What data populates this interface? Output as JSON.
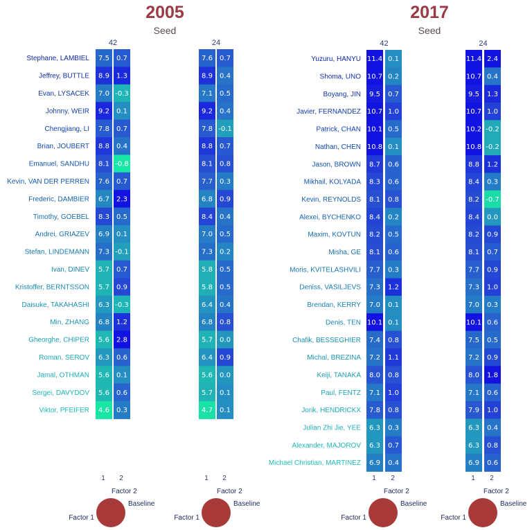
{
  "chart_data": [
    {
      "type": "heatmap",
      "title": "2005",
      "subtitle": "Seed",
      "factor_labels": [
        "1",
        "2"
      ],
      "legend": {
        "factor1": "Factor 1",
        "factor2": "Factor 2",
        "baseline": "Baseline"
      },
      "skaters": [
        "Stephane, LAMBIEL",
        "Jeffrey, BUTTLE",
        "Evan, LYSACEK",
        "Johnny, WEIR",
        "Chengjiang, LI",
        "Brian, JOUBERT",
        "Emanuel, SANDHU",
        "Kevin, VAN DER PERREN",
        "Frederic, DAMBIER",
        "Timothy, GOEBEL",
        "Andrei, GRIAZEV",
        "Stefan, LINDEMANN",
        "Ivan, DINEV",
        "Kristoffer, BERNTSSON",
        "Daisuke, TAKAHASHI",
        "Min, ZHANG",
        "Gheorghe, CHIPER",
        "Roman, SEROV",
        "Jamal, OTHMAN",
        "Sergei, DAVYDOV",
        "Viktor, PFEIFER"
      ],
      "seeds": [
        {
          "seed": "42",
          "factor1": [
            "7.5",
            "8.9",
            "7.0",
            "9.2",
            "7.8",
            "8.8",
            "8.1",
            "7.6",
            "6.7",
            "8.3",
            "6.9",
            "7.3",
            "5.7",
            "5.7",
            "6.3",
            "6.8",
            "5.6",
            "6.3",
            "5.6",
            "5.6",
            "4.6"
          ],
          "factor2": [
            "0.7",
            "1.3",
            "-0.3",
            "0.1",
            "0.7",
            "0.4",
            "-0.8",
            "0.7",
            "2.3",
            "0.5",
            "0.1",
            "-0.1",
            "0.7",
            "0.9",
            "-0.3",
            "1.2",
            "2.8",
            "0.6",
            "0.1",
            "0.6",
            "0.3"
          ]
        },
        {
          "seed": "24",
          "factor1": [
            "7.6",
            "8.9",
            "7.1",
            "9.2",
            "7.8",
            "8.8",
            "8.1",
            "7.7",
            "6.8",
            "8.4",
            "7.0",
            "7.3",
            "5.8",
            "5.8",
            "6.4",
            "6.8",
            "5.7",
            "6.4",
            "5.6",
            "5.7",
            "4.7"
          ],
          "factor2": [
            "0.7",
            "0.4",
            "0.5",
            "0.4",
            "-0.1",
            "0.7",
            "0.8",
            "0.3",
            "0.9",
            "0.4",
            "0.5",
            "0.2",
            "0.5",
            "0.5",
            "0.4",
            "0.8",
            "0.0",
            "0.9",
            "0.0",
            "0.1",
            "0.1"
          ]
        }
      ]
    },
    {
      "type": "heatmap",
      "title": "2017",
      "subtitle": "Seed",
      "factor_labels": [
        "1",
        "2"
      ],
      "legend": {
        "factor1": "Factor 1",
        "factor2": "Factor 2",
        "baseline": "Baseline"
      },
      "skaters": [
        "Yuzuru, HANYU",
        "Shoma, UNO",
        "Boyang, JIN",
        "Javier, FERNANDEZ",
        "Patrick, CHAN",
        "Nathan, CHEN",
        "Jason, BROWN",
        "Mikhail, KOLYADA",
        "Kevin, REYNOLDS",
        "Alexei, BYCHENKO",
        "Maxim, KOVTUN",
        "Misha, GE",
        "Moris, KVITELASHVILI",
        "Deniss, VASILJEVS",
        "Brendan, KERRY",
        "Denis, TEN",
        "Chafik, BESSEGHIER",
        "Michal, BREZINA",
        "Keiji, TANAKA",
        "Paul, FENTZ",
        "Jorik, HENDRICKX",
        "Julian Zhi Jie, YEE",
        "Alexander, MAJOROV",
        "Michael Christian, MARTINEZ"
      ],
      "seeds": [
        {
          "seed": "42",
          "factor1": [
            "11.4",
            "10.7",
            "9.5",
            "10.7",
            "10.1",
            "10.8",
            "8.7",
            "8.3",
            "8.1",
            "8.4",
            "8.2",
            "8.1",
            "7.7",
            "7.3",
            "7.0",
            "10.1",
            "7.4",
            "7.2",
            "8.0",
            "7.1",
            "7.8",
            "6.3",
            "6.3",
            "6.9"
          ],
          "factor2": [
            "0.1",
            "0.2",
            "0.7",
            "1.0",
            "0.5",
            "0.1",
            "0.6",
            "0.6",
            "0.8",
            "0.2",
            "0.5",
            "0.6",
            "0.3",
            "1.2",
            "0.1",
            "0.1",
            "0.8",
            "1.1",
            "0.8",
            "1.0",
            "0.8",
            "0.3",
            "0.7",
            "0.4"
          ]
        },
        {
          "seed": "24",
          "factor1": [
            "11.4",
            "10.7",
            "9.5",
            "10.7",
            "10.2",
            "10.8",
            "8.8",
            "8.4",
            "8.2",
            "8.4",
            "8.2",
            "8.1",
            "7.7",
            "7.3",
            "7.0",
            "10.1",
            "7.5",
            "7.2",
            "8.0",
            "7.1",
            "7.9",
            "6.3",
            "6.3",
            "6.9"
          ],
          "factor2": [
            "2.4",
            "0.4",
            "1.3",
            "1.0",
            "-0.2",
            "-0.2",
            "1.2",
            "0.3",
            "-0.7",
            "0.0",
            "0.9",
            "0.7",
            "0.9",
            "1.0",
            "0.3",
            "0.6",
            "0.5",
            "0.9",
            "1.8",
            "0.6",
            "1.0",
            "0.4",
            "0.8",
            "0.6"
          ]
        }
      ]
    }
  ]
}
